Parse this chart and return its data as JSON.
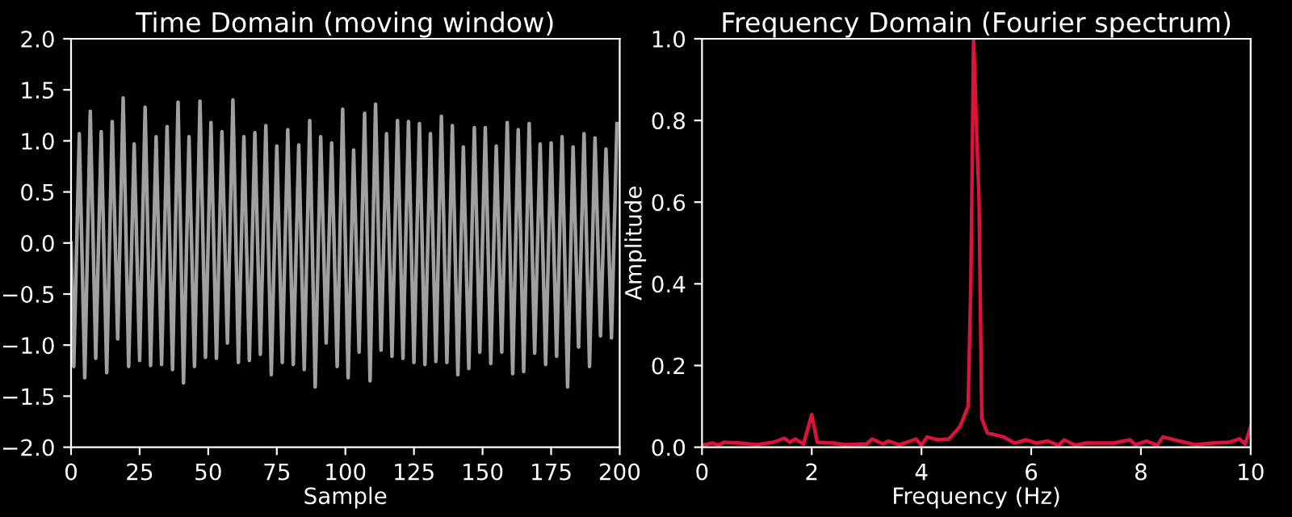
{
  "chart_data": [
    {
      "type": "line",
      "title": "Time Domain (moving window)",
      "xlabel": "Sample",
      "xlim": [
        0,
        200
      ],
      "xticks": [
        0,
        25,
        50,
        75,
        100,
        125,
        150,
        175,
        200
      ],
      "ylim": [
        -2.0,
        2.0
      ],
      "yticks": [
        {
          "value": -2.0,
          "label": "−2.0"
        },
        {
          "value": -1.5,
          "label": "−1.5"
        },
        {
          "value": -1.0,
          "label": "−1.0"
        },
        {
          "value": -0.5,
          "label": "−0.5"
        },
        {
          "value": 0.0,
          "label": "0.0"
        },
        {
          "value": 0.5,
          "label": "0.5"
        },
        {
          "value": 1.0,
          "label": "1.0"
        },
        {
          "value": 1.5,
          "label": "1.5"
        },
        {
          "value": 2.0,
          "label": "2.0"
        }
      ],
      "grid": false,
      "x": [
        0,
        1,
        3,
        5,
        7,
        9,
        11,
        13,
        15,
        17,
        19,
        21,
        23,
        25,
        27,
        29,
        31,
        33,
        35,
        37,
        39,
        41,
        43,
        45,
        47,
        49,
        51,
        53,
        55,
        57,
        59,
        61,
        63,
        65,
        67,
        69,
        71,
        73,
        75,
        77,
        79,
        81,
        83,
        85,
        87,
        89,
        91,
        93,
        95,
        97,
        99,
        101,
        103,
        105,
        107,
        109,
        111,
        113,
        115,
        117,
        119,
        121,
        123,
        125,
        127,
        129,
        131,
        133,
        135,
        137,
        139,
        141,
        143,
        145,
        147,
        149,
        151,
        153,
        155,
        157,
        159,
        161,
        163,
        165,
        167,
        169,
        171,
        173,
        175,
        177,
        179,
        181,
        183,
        185,
        187,
        189,
        191,
        193,
        195,
        197,
        199
      ],
      "series": [
        {
          "color": "#a0a0a0",
          "values": [
            0.0,
            -1.21,
            1.07,
            -1.32,
            1.29,
            -1.13,
            1.09,
            -1.27,
            1.19,
            -0.94,
            1.42,
            -1.21,
            0.97,
            -1.15,
            1.33,
            -1.2,
            1.04,
            -1.19,
            1.14,
            -1.24,
            1.38,
            -1.37,
            1.04,
            -1.21,
            1.39,
            -1.12,
            1.18,
            -1.13,
            1.09,
            -0.98,
            1.4,
            -1.17,
            1.04,
            -1.15,
            1.08,
            -1.09,
            1.15,
            -1.29,
            0.95,
            -1.17,
            1.11,
            -1.19,
            0.96,
            -1.24,
            1.2,
            -1.41,
            1.04,
            -0.98,
            0.98,
            -1.21,
            1.31,
            -1.32,
            0.91,
            -1.07,
            1.27,
            -1.35,
            1.36,
            -1.05,
            1.07,
            -1.11,
            1.2,
            -1.13,
            1.19,
            -1.17,
            1.17,
            -1.19,
            1.07,
            -1.16,
            1.24,
            -1.17,
            1.15,
            -1.29,
            0.94,
            -1.23,
            1.13,
            -1.07,
            1.13,
            -1.18,
            0.95,
            -1.07,
            1.18,
            -1.28,
            1.11,
            -1.26,
            1.17,
            -1.08,
            0.97,
            -1.19,
            0.98,
            -1.11,
            1.04,
            -1.41,
            0.94,
            -1.02,
            1.07,
            -1.21,
            1.03,
            -0.91,
            0.92,
            -0.93,
            1.17
          ]
        }
      ]
    },
    {
      "type": "line",
      "title": "Frequency Domain (Fourier spectrum)",
      "xlabel": "Frequency (Hz)",
      "ylabel": "Amplitude",
      "xlim": [
        0,
        10
      ],
      "xticks": [
        0,
        2,
        4,
        6,
        8,
        10
      ],
      "ylim": [
        0.0,
        1.0
      ],
      "yticks": [
        {
          "value": 0.0,
          "label": "0.0"
        },
        {
          "value": 0.2,
          "label": "0.2"
        },
        {
          "value": 0.4,
          "label": "0.4"
        },
        {
          "value": 0.6,
          "label": "0.6"
        },
        {
          "value": 0.8,
          "label": "0.8"
        },
        {
          "value": 1.0,
          "label": "1.0"
        }
      ],
      "grid": false,
      "x": [
        0,
        0.2,
        0.3,
        0.4,
        0.7,
        1.0,
        1.3,
        1.5,
        1.6,
        1.7,
        1.85,
        2.0,
        2.1,
        2.4,
        2.6,
        3.0,
        3.1,
        3.3,
        3.4,
        3.6,
        3.9,
        4.0,
        4.1,
        4.3,
        4.5,
        4.7,
        4.85,
        4.9,
        4.95,
        5.05,
        5.1,
        5.2,
        5.5,
        5.7,
        5.9,
        6.1,
        6.3,
        6.5,
        6.6,
        6.8,
        7.0,
        7.5,
        7.8,
        7.9,
        8.1,
        8.3,
        8.4,
        8.7,
        9.0,
        9.3,
        9.6,
        9.8,
        9.9,
        10
      ],
      "series": [
        {
          "color": "#dc143c",
          "values": [
            0.005,
            0.01,
            0.005,
            0.012,
            0.01,
            0.006,
            0.012,
            0.022,
            0.012,
            0.02,
            0.008,
            0.08,
            0.012,
            0.01,
            0.006,
            0.008,
            0.02,
            0.008,
            0.015,
            0.006,
            0.02,
            0.005,
            0.025,
            0.018,
            0.02,
            0.05,
            0.1,
            0.4,
            1.0,
            0.6,
            0.07,
            0.035,
            0.025,
            0.01,
            0.018,
            0.01,
            0.015,
            0.005,
            0.018,
            0.005,
            0.01,
            0.01,
            0.018,
            0.006,
            0.015,
            0.005,
            0.025,
            0.015,
            0.006,
            0.01,
            0.012,
            0.02,
            0.008,
            0.05
          ]
        }
      ]
    }
  ]
}
